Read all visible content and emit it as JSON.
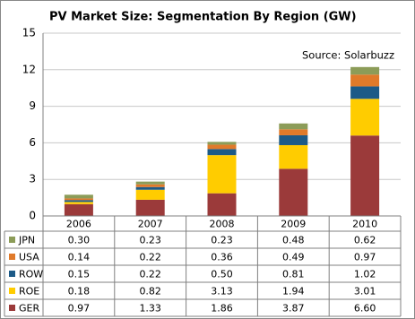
{
  "chart_data": {
    "type": "stacked-bar",
    "title": "PV Market Size: Segmentation  By Region (GW)",
    "annotation": "Source: Solarbuzz",
    "categories": [
      "2006",
      "2007",
      "2008",
      "2009",
      "2010"
    ],
    "series": [
      {
        "name": "GER",
        "color": "#9b3a3a",
        "values": [
          0.97,
          1.33,
          1.86,
          3.87,
          6.6
        ],
        "value_labels": [
          "0.97",
          "1.33",
          "1.86",
          "3.87",
          "6.60"
        ]
      },
      {
        "name": "ROE",
        "color": "#ffcc00",
        "values": [
          0.18,
          0.82,
          3.13,
          1.94,
          3.01
        ],
        "value_labels": [
          "0.18",
          "0.82",
          "3.13",
          "1.94",
          "3.01"
        ]
      },
      {
        "name": "ROW",
        "color": "#1c5a87",
        "values": [
          0.15,
          0.22,
          0.5,
          0.81,
          1.02
        ],
        "value_labels": [
          "0.15",
          "0.22",
          "0.50",
          "0.81",
          "1.02"
        ]
      },
      {
        "name": "USA",
        "color": "#e07a2a",
        "values": [
          0.14,
          0.22,
          0.36,
          0.49,
          0.97
        ],
        "value_labels": [
          "0.14",
          "0.22",
          "0.36",
          "0.49",
          "0.97"
        ]
      },
      {
        "name": "JPN",
        "color": "#8c9c58",
        "values": [
          0.3,
          0.23,
          0.23,
          0.48,
          0.62
        ],
        "value_labels": [
          "0.30",
          "0.23",
          "0.23",
          "0.48",
          "0.62"
        ]
      }
    ],
    "ylim": [
      0,
      15
    ],
    "yticks": [
      0,
      3,
      6,
      9,
      12,
      15
    ],
    "grid": true,
    "data_table": true
  }
}
